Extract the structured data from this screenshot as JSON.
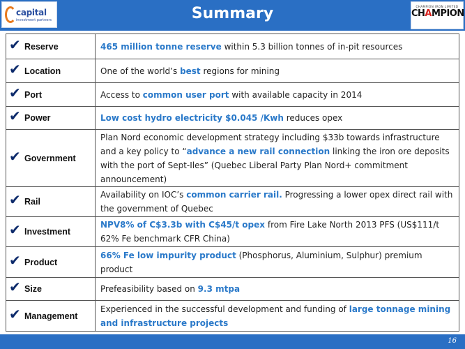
{
  "header": {
    "title": "Summary",
    "left_logo": {
      "word": "capital",
      "tagline": "investment partners"
    },
    "right_logo": {
      "small": "CHAMPION IRON LIMITED",
      "big_a": "CH",
      "big_b": "A",
      "big_c": "MPION"
    }
  },
  "rows": [
    {
      "label": "Reserve",
      "parts": [
        {
          "t": "465 million tonne reserve",
          "hl": true
        },
        {
          "t": " within 5.3 billion tonnes of in-pit resources",
          "hl": false
        }
      ]
    },
    {
      "label": "Location",
      "parts": [
        {
          "t": "One of the world’s ",
          "hl": false
        },
        {
          "t": "best",
          "hl": true
        },
        {
          "t": " regions for mining",
          "hl": false
        }
      ]
    },
    {
      "label": "Port",
      "parts": [
        {
          "t": "Access to ",
          "hl": false
        },
        {
          "t": "common user port",
          "hl": true
        },
        {
          "t": " with available capacity in 2014",
          "hl": false
        }
      ]
    },
    {
      "label": "Power",
      "parts": [
        {
          "t": "Low cost hydro electricity $0.045 /Kwh",
          "hl": true
        },
        {
          "t": " reduces opex",
          "hl": false
        }
      ]
    },
    {
      "label": "Government",
      "parts": [
        {
          "t": "Plan Nord economic development strategy including $33b towards infrastructure and a key policy to “",
          "hl": false
        },
        {
          "t": "advance a new rail connection",
          "hl": true
        },
        {
          "t": " linking the iron ore deposits with the port of Sept-Iles” (Quebec Liberal Party Plan Nord+ commitment announcement)",
          "hl": false
        }
      ]
    },
    {
      "label": "Rail",
      "parts": [
        {
          "t": "Availability on IOC’s  ",
          "hl": false
        },
        {
          "t": "common carrier rail.",
          "hl": true
        },
        {
          "t": " Progressing a lower opex direct rail with the government of Quebec",
          "hl": false
        }
      ]
    },
    {
      "label": "Investment",
      "parts": [
        {
          "t": "NPV8% of C$3.3b with C$45/t opex",
          "hl": true
        },
        {
          "t": " from Fire Lake North 2013 PFS (US$111/t 62% Fe benchmark CFR China)",
          "hl": false
        }
      ]
    },
    {
      "label": "Product",
      "parts": [
        {
          "t": "66% Fe low impurity product",
          "hl": true
        },
        {
          "t": " (Phosphorus, Aluminium, Sulphur) premium product",
          "hl": false
        }
      ]
    },
    {
      "label": "Size",
      "parts": [
        {
          "t": "Prefeasibility based on ",
          "hl": false
        },
        {
          "t": "9.3 mtpa",
          "hl": true
        }
      ]
    },
    {
      "label": "Management",
      "parts": [
        {
          "t": "Experienced in the successful development and funding of ",
          "hl": false
        },
        {
          "t": "large tonnage mining and infrastructure projects",
          "hl": true
        }
      ]
    }
  ],
  "footer": {
    "page": "16"
  },
  "colors": {
    "header_blue": "#2a6fc4",
    "highlight": "#2a79c9",
    "check": "#0c2a6b"
  }
}
